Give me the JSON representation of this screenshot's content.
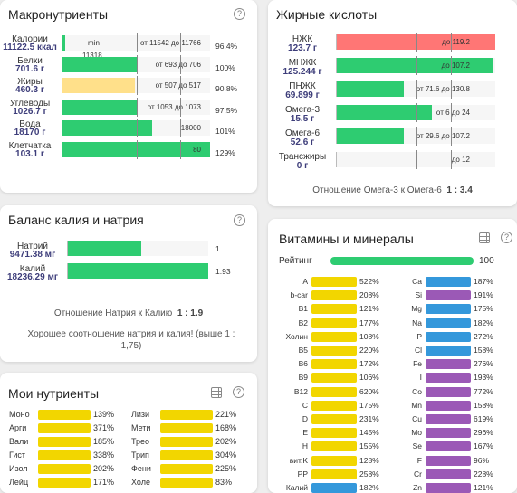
{
  "colors": {
    "green": "#2ecc71",
    "yellow": "#ffe08a",
    "red": "#ff7675",
    "vyellow": "#f2d600",
    "purple": "#9b59b6",
    "blue": "#3498db"
  },
  "macro": {
    "title": "Макронутриенты",
    "help": "?",
    "rows": [
      {
        "name": "Калории",
        "value": "11122.5 ккал",
        "fill": 0.02,
        "color": "green",
        "left_text": "min",
        "range": "от 11542 до 11766",
        "sub": "11318",
        "pct": "96.4%"
      },
      {
        "name": "Белки",
        "value": "701.6 г",
        "fill": 0.5,
        "color": "green",
        "range": "от 693 до 706",
        "pct": "100%"
      },
      {
        "name": "Жиры",
        "value": "460.3 г",
        "fill": 0.49,
        "color": "yellow",
        "range": "от 507 до 517",
        "pct": "90.8%"
      },
      {
        "name": "Углеводы",
        "value": "1026.7 г",
        "fill": 0.5,
        "color": "green",
        "range": "от 1053 до 1073",
        "pct": "97.5%"
      },
      {
        "name": "Вода",
        "value": "18170 г",
        "fill": 0.61,
        "color": "green",
        "range": "18000",
        "pct": "101%"
      },
      {
        "name": "Клетчатка",
        "value": "103.1 г",
        "fill": 1.0,
        "color": "green",
        "range": "80",
        "pct": "129%"
      }
    ]
  },
  "fatty": {
    "title": "Жирные кислоты",
    "rows": [
      {
        "name": "НЖК",
        "value": "123.7 г",
        "fill": 1.0,
        "color": "red",
        "range": "до 119.2"
      },
      {
        "name": "МНЖК",
        "value": "125.244 г",
        "fill": 0.99,
        "color": "green",
        "range": "до 107.2"
      },
      {
        "name": "ПНЖК",
        "value": "69.899 г",
        "fill": 0.42,
        "color": "green",
        "range": "от 71.6 до 130.8"
      },
      {
        "name": "Омега-3",
        "value": "15.5 г",
        "fill": 0.6,
        "color": "green",
        "range": "от 6 до 24"
      },
      {
        "name": "Омега-6",
        "value": "52.6 г",
        "fill": 0.42,
        "color": "green",
        "range": "от 29.6 до 107.2"
      },
      {
        "name": "Трансжиры",
        "value": "0 г",
        "fill": 0,
        "color": "green",
        "range": "до 12"
      }
    ],
    "ratio_label": "Отношение Омега-3 к Омега-6",
    "ratio_value": "1 : 3.4"
  },
  "kna": {
    "title": "Баланс калия и натрия",
    "help": "?",
    "rows": [
      {
        "name": "Натрий",
        "value": "9471.38 мг",
        "fill": 0.52,
        "color": "green",
        "range": "1"
      },
      {
        "name": "Калий",
        "value": "18236.29 мг",
        "fill": 1.0,
        "color": "green",
        "range": "1.93"
      }
    ],
    "ratio_label": "Отношение Натрия к Калию",
    "ratio_value": "1 : 1.9",
    "note": "Хорошее соотношение натрия и калия! (выше 1 : 1,75)"
  },
  "vit": {
    "title": "Витамины и минералы",
    "help": "?",
    "rating_label": "Рейтинг",
    "rating_value": "100",
    "rating_fill": 1.0,
    "left": [
      {
        "name": "A",
        "pct": "522%",
        "color": "vyellow"
      },
      {
        "name": "b-car",
        "pct": "208%",
        "color": "vyellow"
      },
      {
        "name": "B1",
        "pct": "121%",
        "color": "vyellow"
      },
      {
        "name": "B2",
        "pct": "177%",
        "color": "vyellow"
      },
      {
        "name": "Холин",
        "pct": "108%",
        "color": "vyellow"
      },
      {
        "name": "B5",
        "pct": "220%",
        "color": "vyellow"
      },
      {
        "name": "B6",
        "pct": "172%",
        "color": "vyellow"
      },
      {
        "name": "B9",
        "pct": "106%",
        "color": "vyellow"
      },
      {
        "name": "B12",
        "pct": "620%",
        "color": "vyellow"
      },
      {
        "name": "C",
        "pct": "175%",
        "color": "vyellow"
      },
      {
        "name": "D",
        "pct": "231%",
        "color": "vyellow"
      },
      {
        "name": "E",
        "pct": "145%",
        "color": "vyellow"
      },
      {
        "name": "H",
        "pct": "155%",
        "color": "vyellow"
      },
      {
        "name": "вит.K",
        "pct": "128%",
        "color": "vyellow"
      },
      {
        "name": "PP",
        "pct": "258%",
        "color": "vyellow"
      },
      {
        "name": "Калий",
        "pct": "182%",
        "color": "blue"
      }
    ],
    "right": [
      {
        "name": "Ca",
        "pct": "187%",
        "color": "blue"
      },
      {
        "name": "Si",
        "pct": "191%",
        "color": "purple"
      },
      {
        "name": "Mg",
        "pct": "175%",
        "color": "blue"
      },
      {
        "name": "Na",
        "pct": "182%",
        "color": "blue"
      },
      {
        "name": "P",
        "pct": "272%",
        "color": "blue"
      },
      {
        "name": "Cl",
        "pct": "158%",
        "color": "blue"
      },
      {
        "name": "Fe",
        "pct": "276%",
        "color": "purple"
      },
      {
        "name": "I",
        "pct": "193%",
        "color": "purple"
      },
      {
        "name": "Co",
        "pct": "772%",
        "color": "purple"
      },
      {
        "name": "Mn",
        "pct": "158%",
        "color": "purple"
      },
      {
        "name": "Cu",
        "pct": "619%",
        "color": "purple"
      },
      {
        "name": "Mo",
        "pct": "296%",
        "color": "purple"
      },
      {
        "name": "Se",
        "pct": "167%",
        "color": "purple"
      },
      {
        "name": "F",
        "pct": "96%",
        "color": "purple"
      },
      {
        "name": "Cr",
        "pct": "228%",
        "color": "purple"
      },
      {
        "name": "Zn",
        "pct": "121%",
        "color": "purple"
      }
    ]
  },
  "mine": {
    "title": "Мои нутриенты",
    "help": "?",
    "left": [
      {
        "name": "Моно",
        "pct": "139%"
      },
      {
        "name": "Арги",
        "pct": "371%"
      },
      {
        "name": "Вали",
        "pct": "185%"
      },
      {
        "name": "Гист",
        "pct": "338%"
      },
      {
        "name": "Изол",
        "pct": "202%"
      },
      {
        "name": "Лейц",
        "pct": "171%"
      }
    ],
    "right": [
      {
        "name": "Лизи",
        "pct": "221%"
      },
      {
        "name": "Мети",
        "pct": "168%"
      },
      {
        "name": "Трео",
        "pct": "202%"
      },
      {
        "name": "Трип",
        "pct": "304%"
      },
      {
        "name": "Фени",
        "pct": "225%"
      },
      {
        "name": "Холе",
        "pct": "83%"
      }
    ]
  }
}
